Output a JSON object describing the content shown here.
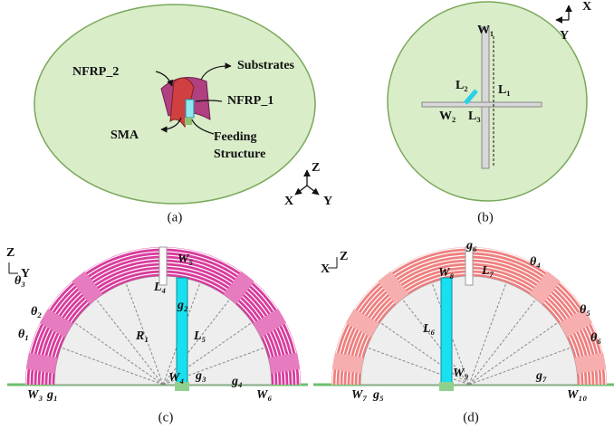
{
  "panel_a": {
    "caption": "(a)",
    "labels": [
      "NFRP_2",
      "Substrates",
      "NFRP_1",
      "SMA",
      "Feeding",
      "Structure"
    ],
    "axes": [
      "Z",
      "X",
      "Y"
    ]
  },
  "panel_b": {
    "caption": "(b)",
    "labels": [
      "W₁",
      "L₂",
      "L₁",
      "W₂",
      "L₃"
    ],
    "axes": [
      "X",
      "Y"
    ]
  },
  "panel_c": {
    "caption": "(c)",
    "axes": [
      "Z",
      "Y"
    ],
    "labels": [
      "θ₃",
      "θ₂",
      "θ₁",
      "L₄",
      "g₂",
      "W₅",
      "R₁",
      "L₅",
      "W₃",
      "g₁",
      "W₄",
      "g₃",
      "g₄",
      "W₆"
    ]
  },
  "panel_d": {
    "caption": "(d)",
    "axes": [
      "X",
      "Z"
    ],
    "labels": [
      "g₆",
      "W₈",
      "L₇",
      "θ₄",
      "θ₅",
      "θ₆",
      "L₆",
      "W₉",
      "W₇",
      "g₅",
      "g₇",
      "W₁₀"
    ]
  }
}
